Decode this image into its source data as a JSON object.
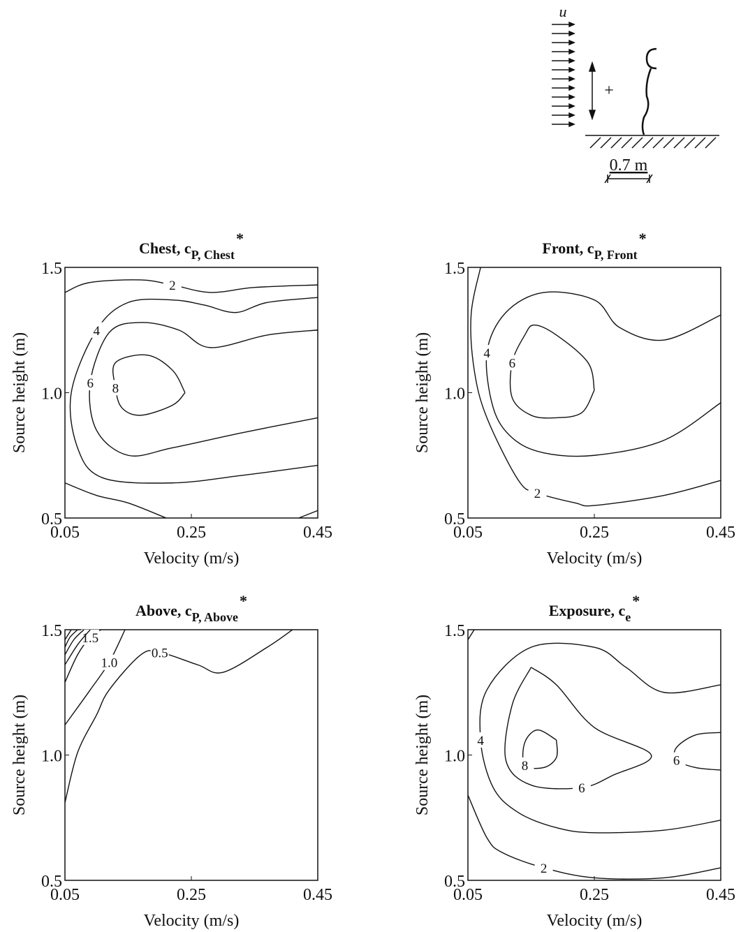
{
  "inset": {
    "flow_label": "u",
    "plus": "+",
    "scale_label": "0.7 m"
  },
  "chart_data": [
    {
      "type": "contour",
      "title": {
        "text": "Chest, c",
        "sub": "P, Chest",
        "sup": "*"
      },
      "xlabel": "Velocity (m/s)",
      "ylabel": "Source height (m)",
      "xlim": [
        0.05,
        0.45
      ],
      "ylim": [
        0.5,
        1.5
      ],
      "xticks": [
        0.05,
        0.25,
        0.45
      ],
      "yticks": [
        0.5,
        {
          "value": 1,
          "label": "1.0"
        },
        1.5
      ],
      "contours": [
        {
          "level": 2,
          "x": [
            0.05,
            0.09,
            0.17,
            0.22,
            0.28,
            0.35,
            0.45
          ],
          "y": [
            1.4,
            1.44,
            1.45,
            1.43,
            1.4,
            1.42,
            1.43
          ]
        },
        {
          "x": [
            0.05,
            0.1,
            0.15,
            0.21
          ],
          "y": [
            0.64,
            0.59,
            0.56,
            0.5
          ]
        },
        {
          "x": [
            0.42,
            0.45
          ],
          "y": [
            0.5,
            0.53
          ]
        },
        {
          "level": 4,
          "x": [
            0.45,
            0.37,
            0.32,
            0.27,
            0.22,
            0.15,
            0.1,
            0.06,
            0.07,
            0.11,
            0.22,
            0.33,
            0.45
          ],
          "y": [
            1.38,
            1.36,
            1.32,
            1.35,
            1.37,
            1.36,
            1.25,
            1.0,
            0.78,
            0.66,
            0.64,
            0.67,
            0.71
          ]
        },
        {
          "level": 6,
          "x": [
            0.45,
            0.37,
            0.28,
            0.23,
            0.17,
            0.12,
            0.09,
            0.1,
            0.15,
            0.22,
            0.33,
            0.45
          ],
          "y": [
            1.25,
            1.23,
            1.18,
            1.25,
            1.28,
            1.24,
            1.04,
            0.85,
            0.75,
            0.78,
            0.84,
            0.9
          ]
        },
        {
          "level": 8,
          "x": [
            0.24,
            0.22,
            0.17,
            0.14,
            0.13,
            0.13,
            0.18,
            0.22,
            0.24
          ],
          "y": [
            1.0,
            0.95,
            0.91,
            0.94,
            1.02,
            1.12,
            1.15,
            1.09,
            1.0
          ]
        }
      ]
    },
    {
      "type": "contour",
      "title": {
        "text": "Front, c",
        "sub": "P, Front",
        "sup": "*"
      },
      "xlabel": "Velocity (m/s)",
      "ylabel": "Source height (m)",
      "xlim": [
        0.05,
        0.45
      ],
      "ylim": [
        0.5,
        1.5
      ],
      "xticks": [
        0.05,
        0.25,
        0.45
      ],
      "yticks": [
        0.5,
        {
          "value": 1,
          "label": "1.0"
        },
        1.5
      ],
      "contours": [
        {
          "level": 2,
          "x": [
            0.07,
            0.055,
            0.06,
            0.08,
            0.13,
            0.16,
            0.22,
            0.25,
            0.36,
            0.45
          ],
          "y": [
            1.5,
            1.31,
            1.09,
            0.9,
            0.65,
            0.6,
            0.56,
            0.55,
            0.59,
            0.65
          ]
        },
        {
          "level": 4,
          "x": [
            0.45,
            0.36,
            0.29,
            0.25,
            0.17,
            0.11,
            0.08,
            0.09,
            0.12,
            0.17,
            0.25,
            0.36,
            0.45
          ],
          "y": [
            1.31,
            1.21,
            1.26,
            1.37,
            1.4,
            1.32,
            1.16,
            0.94,
            0.82,
            0.76,
            0.75,
            0.81,
            0.96
          ]
        },
        {
          "level": 6,
          "x": [
            0.25,
            0.24,
            0.19,
            0.155,
            0.14,
            0.12,
            0.12,
            0.15,
            0.19,
            0.23,
            0.25
          ],
          "y": [
            1.01,
            1.12,
            1.23,
            1.27,
            1.23,
            1.12,
            0.98,
            0.91,
            0.9,
            0.92,
            1.01
          ]
        }
      ]
    },
    {
      "type": "contour",
      "title": {
        "text": "Above, c",
        "sub": "P, Above",
        "sup": "*"
      },
      "xlabel": "Velocity (m/s)",
      "ylabel": "Source height (m)",
      "xlim": [
        0.05,
        0.45
      ],
      "ylim": [
        0.5,
        1.5
      ],
      "xticks": [
        0.05,
        0.25,
        0.45
      ],
      "yticks": [
        0.5,
        {
          "value": 1,
          "label": "1.0"
        },
        1.5
      ],
      "contours": [
        {
          "level": 0.5,
          "x": [
            0.05,
            0.07,
            0.1,
            0.12,
            0.17,
            0.2,
            0.26,
            0.3,
            0.37,
            0.41
          ],
          "y": [
            0.81,
            1.01,
            1.16,
            1.26,
            1.4,
            1.41,
            1.36,
            1.33,
            1.43,
            1.5
          ]
        },
        {
          "level": 1,
          "level_label": "1.0",
          "x": [
            0.05,
            0.09,
            0.12,
            0.145
          ],
          "y": [
            1.12,
            1.26,
            1.37,
            1.5
          ]
        },
        {
          "level": 1.5,
          "x": [
            0.05,
            0.07,
            0.09,
            0.107
          ],
          "y": [
            1.29,
            1.4,
            1.47,
            1.5
          ]
        },
        {
          "x": [
            0.05,
            0.07,
            0.09
          ],
          "y": [
            1.36,
            1.44,
            1.5
          ]
        },
        {
          "x": [
            0.05,
            0.064,
            0.08
          ],
          "y": [
            1.4,
            1.46,
            1.5
          ]
        },
        {
          "x": [
            0.05,
            0.058,
            0.07
          ],
          "y": [
            1.43,
            1.47,
            1.5
          ]
        },
        {
          "x": [
            0.05,
            0.06
          ],
          "y": [
            1.46,
            1.5
          ]
        }
      ]
    },
    {
      "type": "contour",
      "title": {
        "text": "Exposure, c",
        "sub": "e",
        "sup": "*"
      },
      "xlabel": "Velocity (m/s)",
      "ylabel": "Source height (m)",
      "xlim": [
        0.05,
        0.45
      ],
      "ylim": [
        0.5,
        1.5
      ],
      "xticks": [
        0.05,
        0.25,
        0.45
      ],
      "yticks": [
        0.5,
        {
          "value": 1,
          "label": "1.0"
        },
        1.5
      ],
      "contours": [
        {
          "level": 2,
          "x": [
            0.05,
            0.08,
            0.105,
            0.17,
            0.25,
            0.36,
            0.45
          ],
          "y": [
            0.84,
            0.67,
            0.61,
            0.55,
            0.51,
            0.51,
            0.55
          ]
        },
        {
          "x": [
            0.05,
            0.06
          ],
          "y": [
            1.46,
            1.5
          ]
        },
        {
          "level": 4,
          "x": [
            0.45,
            0.36,
            0.3,
            0.25,
            0.15,
            0.08,
            0.07,
            0.09,
            0.13,
            0.19,
            0.25,
            0.36,
            0.45
          ],
          "y": [
            1.28,
            1.25,
            1.35,
            1.43,
            1.43,
            1.26,
            1.06,
            0.87,
            0.77,
            0.71,
            0.69,
            0.7,
            0.74
          ]
        },
        {
          "level": 6,
          "x": [
            0.15,
            0.19,
            0.25,
            0.34,
            0.28,
            0.23,
            0.15,
            0.11,
            0.12,
            0.15
          ],
          "y": [
            1.35,
            1.28,
            1.11,
            1.0,
            0.92,
            0.87,
            0.88,
            0.98,
            1.2,
            1.35
          ]
        },
        {
          "level": 6,
          "x": [
            0.45,
            0.41,
            0.38,
            0.38,
            0.41,
            0.45
          ],
          "y": [
            1.09,
            1.08,
            1.03,
            0.98,
            0.95,
            0.94
          ]
        },
        {
          "level": 8,
          "x": [
            0.19,
            0.19,
            0.17,
            0.14,
            0.14,
            0.16,
            0.19
          ],
          "y": [
            1.06,
            0.99,
            0.95,
            0.96,
            1.05,
            1.1,
            1.06
          ]
        }
      ]
    }
  ]
}
